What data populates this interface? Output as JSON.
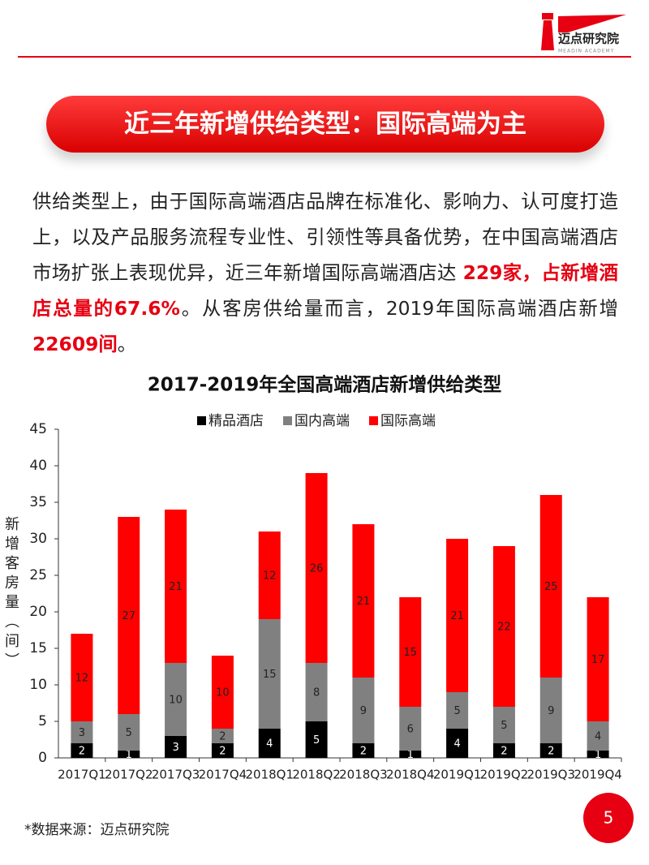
{
  "header": {
    "logo_text": "迈点研究院",
    "logo_subtext": "MEADIN ACADEMY"
  },
  "banner": {
    "title": "近三年新增供给类型：国际高端为主"
  },
  "body": {
    "paragraph": [
      "供给类型上，由于国际高端酒店品牌在标准化、影响力、认可度打造上，以及产品服务流程专业性、引领性等具备优势，在中国高端酒店市场扩张上表现优异，近三年新增国际高端酒店达 ",
      "229家，占新增酒店总量的67.6%",
      "。从客房供给量而言，2019年国际高端酒店新增",
      "22609间",
      "。"
    ]
  },
  "chart_data": {
    "type": "stacked_bar",
    "title": "2017-2019年全国高端酒店新增供给类型",
    "y_label": "新增客房量（间）",
    "categories": [
      "2017Q1",
      "2017Q2",
      "2017Q3",
      "2017Q4",
      "2018Q1",
      "2018Q2",
      "2018Q3",
      "2018Q4",
      "2019Q1",
      "2019Q2",
      "2019Q3",
      "2019Q4"
    ],
    "series": [
      {
        "name": "精品酒店",
        "color": "#000000",
        "values": [
          2,
          1,
          3,
          2,
          4,
          5,
          2,
          1,
          4,
          2,
          2,
          1
        ]
      },
      {
        "name": "国内高端",
        "color": "#808080",
        "values": [
          3,
          5,
          10,
          2,
          15,
          8,
          9,
          6,
          5,
          5,
          9,
          4
        ]
      },
      {
        "name": "国际高端",
        "color": "#ff0000",
        "values": [
          12,
          27,
          21,
          10,
          12,
          26,
          21,
          15,
          21,
          22,
          25,
          17
        ]
      }
    ],
    "ylim": [
      0,
      45
    ],
    "yticks": [
      0,
      5,
      10,
      15,
      20,
      25,
      30,
      35,
      40,
      45
    ],
    "grid": false,
    "legend": "top"
  },
  "footer": {
    "source": "*数据来源：迈点研究院",
    "page_number": 5
  }
}
